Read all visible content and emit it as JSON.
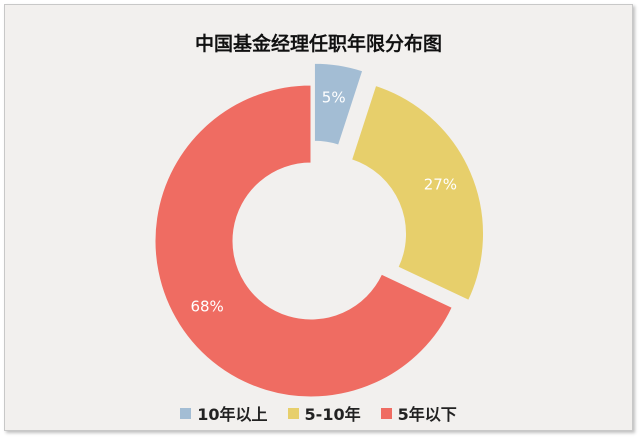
{
  "chart_data": {
    "type": "pie",
    "title": "中国基金经理任职年限分布图",
    "categories": [
      "10年以上",
      "5-10年",
      "5年以下"
    ],
    "values": [
      5,
      27,
      68
    ],
    "value_labels": [
      "5%",
      "27%",
      "68%"
    ],
    "colors": [
      "#a3bdd4",
      "#e7cf6b",
      "#ef6c62"
    ],
    "donut": true,
    "exploded": [
      "10年以上",
      "5-10年"
    ],
    "legend": "bottom-center"
  }
}
